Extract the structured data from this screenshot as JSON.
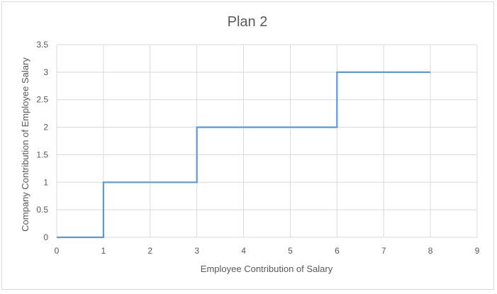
{
  "chart_data": {
    "type": "line",
    "title": "Plan 2",
    "xlabel": "Employee Contribution of Salary",
    "ylabel": "Company Contribution of Employee Salary",
    "xlim": [
      0,
      9
    ],
    "ylim": [
      0,
      3.5
    ],
    "xticks": [
      "0",
      "1",
      "2",
      "3",
      "4",
      "5",
      "6",
      "7",
      "8",
      "9"
    ],
    "yticks": [
      "0",
      "0.5",
      "1",
      "1.5",
      "2",
      "2.5",
      "3",
      "3.5"
    ],
    "grid": true,
    "legend": "none",
    "series": [
      {
        "color": "#5b9bd5",
        "step": true,
        "x": [
          0,
          1,
          1,
          3,
          3,
          6,
          6,
          8
        ],
        "y": [
          0,
          0,
          1,
          1,
          2,
          2,
          3,
          3
        ]
      }
    ]
  }
}
